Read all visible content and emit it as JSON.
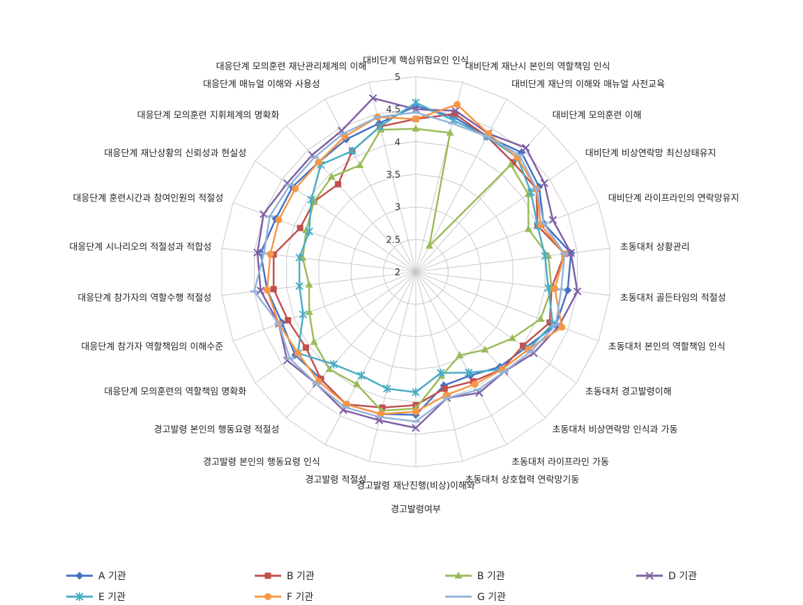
{
  "chart_data": {
    "type": "radar",
    "title": "",
    "categories": [
      "대비단계  핵심위험요인 인식",
      "대비단계  재난시 본인의 역할책임 인식",
      "대비단계  재난의 이해와 매뉴얼 사전교육",
      "대비단계  모의훈련 이해",
      "대비단계  비상연락망 최신상태유지",
      "대비단계  라이프라인의 연락망유지",
      "초동대처 상황관리",
      "초동대처 골든타임의 적절성",
      "초동대처 본인의 역할책임 인식",
      "초동대처 경고발령이해",
      "초동대처 비상연락망 인식과 가동",
      "초동대처 라이프라인 가동",
      "초동대처 상호협력 연락망기동",
      "경고발령  재난진행(비상)이해와|경고발령여부",
      "경고발령  적절성",
      "경고발령  본인의 행동요령 인식",
      "경고발령  본인의 행동요령 적절성",
      "대응단계 모의훈련의 역할책임 명확화",
      "대응단계 참가자 역할책임의 이해수준",
      "대응단계 참가자의 역할수행 적절성",
      "대응단계 시나리오의 적절성과 적합성",
      "대응단계 훈련시간과 참여인원의 적절성",
      "대응단계 재난상황의 신뢰성과 현실성",
      "대응단계 모의훈련 지휘체계의 명확화",
      "대응단계 매뉴얼 이해와 사용성",
      "대응단계 모의훈련 재난관리체계의 이해"
    ],
    "rlim": [
      2,
      5
    ],
    "ticks": [
      "2",
      "2.5",
      "3",
      "3.5",
      "4",
      "4.5",
      "5"
    ],
    "tick_values": [
      2,
      2.5,
      3,
      3.5,
      4,
      4.5,
      5
    ],
    "grid": true,
    "legend_position": "bottom",
    "series": [
      {
        "name": "A 기관",
        "color": "#4472c4",
        "marker": "diamond",
        "values": [
          4.55,
          4.45,
          4.35,
          4.45,
          4.3,
          4.1,
          4.4,
          4.35,
          4.3,
          4.05,
          3.95,
          3.8,
          3.8,
          4.2,
          4.25,
          4.3,
          4.2,
          4.25,
          4.2,
          4.3,
          4.4,
          4.3,
          4.3,
          4.25,
          4.3,
          4.35
        ]
      },
      {
        "name": "B 기관",
        "color": "#c0504d",
        "marker": "square",
        "values": [
          4.35,
          4.5,
          4.35,
          4.25,
          4.25,
          4.0,
          4.3,
          4.1,
          4.2,
          4.0,
          4.0,
          3.9,
          3.85,
          4.05,
          4.15,
          4.3,
          4.2,
          4.05,
          4.1,
          4.2,
          4.2,
          3.9,
          3.9,
          3.8,
          4.1,
          4.3
        ]
      },
      {
        "name": "B 기관",
        "color": "#9bbb59",
        "marker": "triangle",
        "values": [
          4.2,
          4.2,
          2.45,
          4.2,
          4.1,
          3.85,
          4.05,
          4.1,
          4.05,
          3.8,
          3.6,
          3.45,
          3.65,
          4.1,
          4.2,
          3.95,
          4.0,
          3.9,
          3.75,
          3.65,
          3.75,
          3.8,
          3.9,
          3.95,
          3.85,
          4.25
        ]
      },
      {
        "name": "D 기관",
        "color": "#7f5fa5",
        "marker": "x",
        "values": [
          4.5,
          4.55,
          4.4,
          4.55,
          4.4,
          4.25,
          4.4,
          4.5,
          4.35,
          4.2,
          4.05,
          4.1,
          4.0,
          4.4,
          4.35,
          4.4,
          4.3,
          4.4,
          4.25,
          4.4,
          4.45,
          4.5,
          4.4,
          4.4,
          4.45,
          4.75
        ]
      },
      {
        "name": "E 기관",
        "color": "#4bacc6",
        "marker": "star",
        "values": [
          4.6,
          4.4,
          4.35,
          4.35,
          4.15,
          4.0,
          4.0,
          4.05,
          4.25,
          4.1,
          4.0,
          3.75,
          3.6,
          3.85,
          3.85,
          3.8,
          3.9,
          4.2,
          3.85,
          3.8,
          3.8,
          3.75,
          3.95,
          4.2,
          4.1,
          4.3
        ]
      },
      {
        "name": "F 기관",
        "color": "#f79646",
        "marker": "circle",
        "values": [
          4.35,
          4.65,
          4.4,
          4.35,
          4.25,
          4.05,
          4.3,
          4.15,
          4.4,
          4.1,
          4.0,
          3.95,
          3.95,
          4.15,
          4.25,
          4.3,
          4.25,
          4.2,
          4.25,
          4.3,
          4.25,
          4.25,
          4.25,
          4.25,
          4.35,
          4.45
        ]
      },
      {
        "name": "G 기관",
        "color": "#95b3d7",
        "marker": "dash",
        "values": [
          4.45,
          4.35,
          4.35,
          4.4,
          4.25,
          4.1,
          4.3,
          4.25,
          4.3,
          4.15,
          4.05,
          4.05,
          4.0,
          4.3,
          4.3,
          4.35,
          4.3,
          4.35,
          4.25,
          4.5,
          4.35,
          4.4,
          4.35,
          4.35,
          4.4,
          4.45
        ]
      }
    ]
  }
}
